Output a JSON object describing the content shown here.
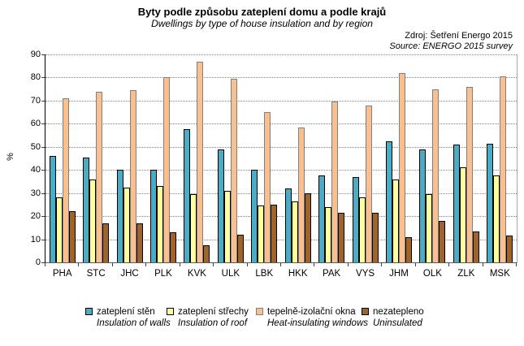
{
  "title": "Byty podle způsobu zateplení domu a podle krajů",
  "subtitle": "Dwellings by type of house insulation and by region",
  "source": {
    "line1": "Zdroj: Šetření Energo 2015",
    "line2": "Source: ENERGO 2015 survey"
  },
  "chart_data": {
    "type": "bar",
    "ylabel": "%",
    "ylim": [
      0,
      90
    ],
    "ytick_step": 10,
    "yticks": [
      0,
      10,
      20,
      30,
      40,
      50,
      60,
      70,
      80,
      90
    ],
    "grid": "horizontal dotted gray",
    "legend_position": "bottom",
    "categories": [
      "PHA",
      "STC",
      "JHC",
      "PLK",
      "KVK",
      "ULK",
      "LBK",
      "HKK",
      "PAK",
      "VYS",
      "JHM",
      "OLK",
      "ZLK",
      "MSK"
    ],
    "series": [
      {
        "key": "walls",
        "name_cs": "zateplení stěn",
        "name_en": "Insulation of walls",
        "color": "#4BACC6",
        "border": "#000000",
        "values": [
          46,
          45.5,
          40,
          40,
          57.5,
          49,
          40,
          32,
          37.5,
          37,
          52.5,
          49,
          51,
          51.5
        ]
      },
      {
        "key": "roof",
        "name_cs": "zateplení střechy",
        "name_en": "Insulation of roof",
        "color": "#FFFF9E",
        "border": "#000000",
        "values": [
          28,
          36,
          32.5,
          33,
          29.5,
          31,
          24.5,
          26.5,
          24,
          28,
          36,
          29.5,
          41,
          37.5
        ]
      },
      {
        "key": "windows",
        "name_cs": "tepelně-izolační okna",
        "name_en": "Heat-insulating windows",
        "color": "#FABF8F",
        "border": "#808080",
        "values": [
          71,
          74,
          74.5,
          80,
          87,
          79.5,
          65,
          58.5,
          69.5,
          68,
          82,
          75,
          76,
          80.5
        ]
      },
      {
        "key": "uninsulated",
        "name_cs": "nezatepleno",
        "name_en": "Uninsulated",
        "color": "#A0632A",
        "border": "#000000",
        "values": [
          22,
          17,
          17,
          13,
          7.5,
          12,
          25,
          30,
          21.5,
          21.5,
          11,
          18,
          13.5,
          11.5
        ]
      }
    ]
  }
}
